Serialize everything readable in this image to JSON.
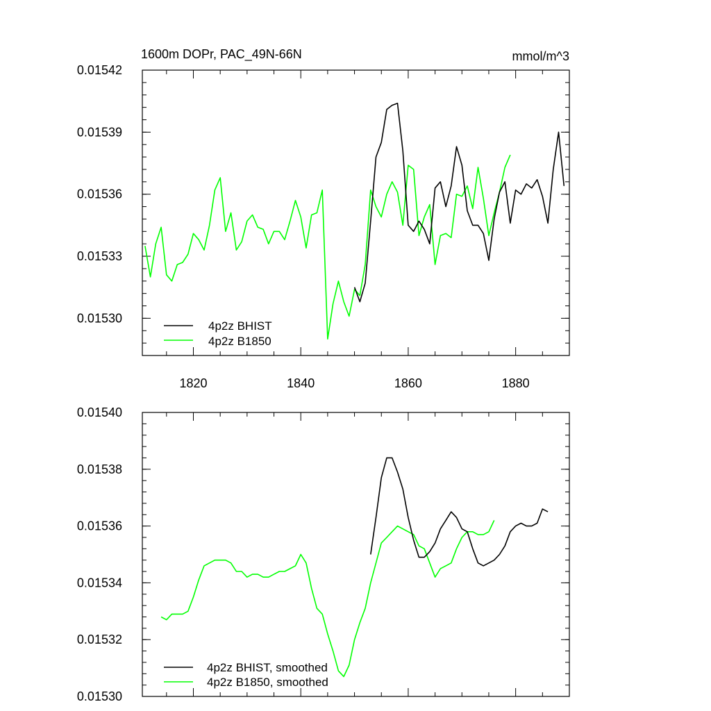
{
  "chart_data": [
    {
      "type": "line",
      "title": "1600m DOPr, PAC_49N-66N",
      "units": "mmol/m^3",
      "xlim": [
        1810.5,
        1890
      ],
      "ylim": [
        0.015282,
        0.01542
      ],
      "yticks": [
        "0.01530",
        "0.01533",
        "0.01536",
        "0.01539",
        "0.01542"
      ],
      "ytick_values": [
        0.0153,
        0.01533,
        0.01536,
        0.01539,
        0.01542
      ],
      "xticks": [
        "1820",
        "1840",
        "1860",
        "1880"
      ],
      "xtick_values": [
        1820,
        1840,
        1860,
        1880
      ],
      "legend_position": "lower-left",
      "series": [
        {
          "name": "4p2z BHIST",
          "color": "#000000",
          "x": [
            1850,
            1851,
            1852,
            1853,
            1854,
            1855,
            1856,
            1857,
            1858,
            1859,
            1860,
            1861,
            1862,
            1863,
            1864,
            1865,
            1866,
            1867,
            1868,
            1869,
            1870,
            1871,
            1872,
            1873,
            1874,
            1875,
            1876,
            1877,
            1878,
            1879,
            1880,
            1881,
            1882,
            1883,
            1884,
            1885,
            1886,
            1887,
            1888,
            1889
          ],
          "y": [
            0.015315,
            0.015308,
            0.015317,
            0.015347,
            0.015378,
            0.015385,
            0.015401,
            0.015403,
            0.015404,
            0.015381,
            0.015345,
            0.015342,
            0.015347,
            0.015343,
            0.015336,
            0.015363,
            0.015366,
            0.015354,
            0.015364,
            0.015383,
            0.015374,
            0.015352,
            0.015345,
            0.015345,
            0.015341,
            0.015328,
            0.015348,
            0.015361,
            0.015366,
            0.015346,
            0.015362,
            0.01536,
            0.015365,
            0.015363,
            0.015367,
            0.015359,
            0.015346,
            0.015372,
            0.01539,
            0.015364
          ]
        },
        {
          "name": "4p2z B1850",
          "color": "#00ff00",
          "x": [
            1811,
            1812,
            1813,
            1814,
            1815,
            1816,
            1817,
            1818,
            1819,
            1820,
            1821,
            1822,
            1823,
            1824,
            1825,
            1826,
            1827,
            1828,
            1829,
            1830,
            1831,
            1832,
            1833,
            1834,
            1835,
            1836,
            1837,
            1838,
            1839,
            1840,
            1841,
            1842,
            1843,
            1844,
            1845,
            1846,
            1847,
            1848,
            1849,
            1850,
            1851,
            1852,
            1853,
            1854,
            1855,
            1856,
            1857,
            1858,
            1859,
            1860,
            1861,
            1862,
            1863,
            1864,
            1865,
            1866,
            1867,
            1868,
            1869,
            1870,
            1871,
            1872,
            1873,
            1874,
            1875,
            1876,
            1877,
            1878,
            1879
          ],
          "y": [
            0.015335,
            0.01532,
            0.015336,
            0.015344,
            0.015321,
            0.015318,
            0.015326,
            0.015327,
            0.015331,
            0.015341,
            0.015338,
            0.015333,
            0.015345,
            0.015362,
            0.015368,
            0.015342,
            0.015351,
            0.015333,
            0.015337,
            0.015347,
            0.01535,
            0.015344,
            0.015343,
            0.015336,
            0.015342,
            0.015342,
            0.015338,
            0.015347,
            0.015357,
            0.015349,
            0.015334,
            0.01535,
            0.015351,
            0.015362,
            0.01529,
            0.015307,
            0.015318,
            0.015308,
            0.015301,
            0.015314,
            0.015311,
            0.015326,
            0.015362,
            0.015354,
            0.015349,
            0.01536,
            0.015366,
            0.015361,
            0.015345,
            0.015374,
            0.015372,
            0.01534,
            0.015349,
            0.015355,
            0.015326,
            0.01534,
            0.015341,
            0.015339,
            0.01536,
            0.015359,
            0.015364,
            0.015353,
            0.015373,
            0.015358,
            0.01534,
            0.015351,
            0.015361,
            0.015373,
            0.015379
          ]
        }
      ]
    },
    {
      "type": "line",
      "title": "",
      "units": "",
      "xlim": [
        1810.5,
        1890
      ],
      "ylim": [
        0.0153,
        0.0154
      ],
      "yticks": [
        "0.01530",
        "0.01532",
        "0.01534",
        "0.01536",
        "0.01538",
        "0.01540"
      ],
      "ytick_values": [
        0.0153,
        0.01532,
        0.01534,
        0.01536,
        0.01538,
        0.0154
      ],
      "xticks": [],
      "xtick_values": [
        1820,
        1840,
        1860,
        1880
      ],
      "legend_position": "lower-left",
      "series": [
        {
          "name": "4p2z BHIST, smoothed",
          "color": "#000000",
          "x": [
            1853,
            1854,
            1855,
            1856,
            1857,
            1858,
            1859,
            1860,
            1861,
            1862,
            1863,
            1864,
            1865,
            1866,
            1867,
            1868,
            1869,
            1870,
            1871,
            1872,
            1873,
            1874,
            1875,
            1876,
            1877,
            1878,
            1879,
            1880,
            1881,
            1882,
            1883,
            1884,
            1885,
            1886
          ],
          "y": [
            0.01535,
            0.015363,
            0.015377,
            0.015384,
            0.015384,
            0.015379,
            0.015373,
            0.015363,
            0.015355,
            0.015349,
            0.015349,
            0.015351,
            0.015354,
            0.015359,
            0.015362,
            0.015365,
            0.015363,
            0.015359,
            0.015358,
            0.015352,
            0.015347,
            0.015346,
            0.015347,
            0.015348,
            0.01535,
            0.015353,
            0.015358,
            0.01536,
            0.015361,
            0.01536,
            0.01536,
            0.015361,
            0.015366,
            0.015365
          ]
        },
        {
          "name": "4p2z B1850, smoothed",
          "color": "#00ff00",
          "x": [
            1814,
            1815,
            1816,
            1817,
            1818,
            1819,
            1820,
            1821,
            1822,
            1823,
            1824,
            1825,
            1826,
            1827,
            1828,
            1829,
            1830,
            1831,
            1832,
            1833,
            1834,
            1835,
            1836,
            1837,
            1838,
            1839,
            1840,
            1841,
            1842,
            1843,
            1844,
            1845,
            1846,
            1847,
            1848,
            1849,
            1850,
            1851,
            1852,
            1853,
            1854,
            1855,
            1856,
            1857,
            1858,
            1859,
            1860,
            1861,
            1862,
            1863,
            1864,
            1865,
            1866,
            1867,
            1868,
            1869,
            1870,
            1871,
            1872,
            1873,
            1874,
            1875,
            1876
          ],
          "y": [
            0.015328,
            0.015327,
            0.015329,
            0.015329,
            0.015329,
            0.01533,
            0.015335,
            0.015341,
            0.015346,
            0.015347,
            0.015348,
            0.015348,
            0.015348,
            0.015347,
            0.015344,
            0.015344,
            0.015342,
            0.015343,
            0.015343,
            0.015342,
            0.015342,
            0.015343,
            0.015344,
            0.015344,
            0.015345,
            0.015346,
            0.01535,
            0.015347,
            0.015338,
            0.015331,
            0.015329,
            0.015322,
            0.015316,
            0.015309,
            0.015307,
            0.015311,
            0.01532,
            0.015326,
            0.015331,
            0.01534,
            0.015347,
            0.015354,
            0.015356,
            0.015358,
            0.01536,
            0.015359,
            0.015358,
            0.015357,
            0.015353,
            0.015352,
            0.015347,
            0.015342,
            0.015345,
            0.015346,
            0.015347,
            0.015352,
            0.015356,
            0.015358,
            0.015358,
            0.015357,
            0.015357,
            0.015358,
            0.015362
          ]
        }
      ]
    }
  ]
}
